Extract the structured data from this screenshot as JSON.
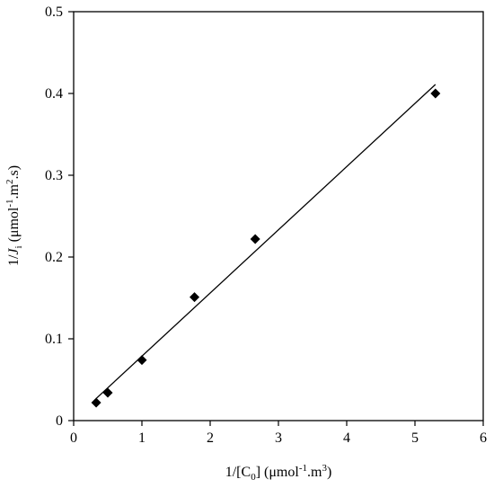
{
  "chart_data": {
    "type": "scatter",
    "title": "",
    "xlabel": {
      "prefix": "1/[C",
      "sub": "0",
      "mid": "] (μmol",
      "sup1": "-1",
      "mid2": ".m",
      "sup2": "3",
      "suffix": ")"
    },
    "ylabel": {
      "prefix": "1/",
      "italic": "J",
      "sub": "i",
      "mid": " (μmol",
      "sup1": "-1",
      "mid2": ".m",
      "sup2": "2",
      "suffix": ".s)"
    },
    "xlim": [
      0,
      6
    ],
    "ylim": [
      0,
      0.5
    ],
    "x_ticks": [
      0,
      1,
      2,
      3,
      4,
      5,
      6
    ],
    "y_ticks": [
      0,
      0.1,
      0.2,
      0.3,
      0.4,
      0.5
    ],
    "grid": false,
    "points": {
      "x": [
        0.33,
        0.5,
        1.0,
        1.77,
        2.66,
        5.3
      ],
      "y": [
        0.022,
        0.034,
        0.074,
        0.151,
        0.222,
        0.4
      ]
    },
    "fit_line": {
      "x": [
        0.33,
        5.3
      ],
      "y": [
        0.027,
        0.411
      ]
    }
  }
}
